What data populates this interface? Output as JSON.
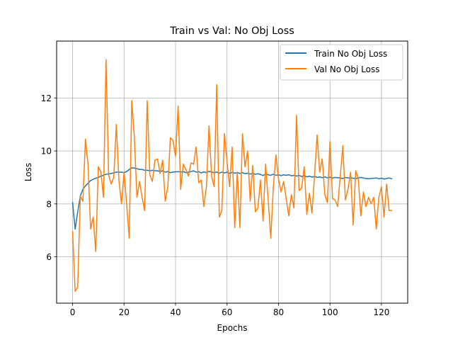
{
  "chart_data": {
    "type": "line",
    "title": "Train vs Val: No Obj Loss",
    "xlabel": "Epochs",
    "ylabel": "Loss",
    "xlim": [
      -6.2,
      130.2
    ],
    "ylim": [
      4.25,
      14.15
    ],
    "xticks": [
      0,
      20,
      40,
      60,
      80,
      100,
      120
    ],
    "yticks": [
      6,
      8,
      10,
      12
    ],
    "grid": true,
    "legend_position": "upper right",
    "series": [
      {
        "name": "Train No Obj Loss",
        "color": "#1f77b4",
        "x": [
          0,
          1,
          2,
          3,
          4,
          5,
          6,
          7,
          8,
          9,
          10,
          11,
          12,
          13,
          14,
          15,
          16,
          17,
          18,
          19,
          20,
          21,
          22,
          23,
          24,
          25,
          26,
          27,
          28,
          29,
          30,
          31,
          32,
          33,
          34,
          35,
          36,
          37,
          38,
          39,
          40,
          41,
          42,
          43,
          44,
          45,
          46,
          47,
          48,
          49,
          50,
          51,
          52,
          53,
          54,
          55,
          56,
          57,
          58,
          59,
          60,
          61,
          62,
          63,
          64,
          65,
          66,
          67,
          68,
          69,
          70,
          71,
          72,
          73,
          74,
          75,
          76,
          77,
          78,
          79,
          80,
          81,
          82,
          83,
          84,
          85,
          86,
          87,
          88,
          89,
          90,
          91,
          92,
          93,
          94,
          95,
          96,
          97,
          98,
          99,
          100,
          101,
          102,
          103,
          104,
          105,
          106,
          107,
          108,
          109,
          110,
          111,
          112,
          113,
          114,
          115,
          116,
          117,
          118,
          119,
          120,
          121,
          122,
          123,
          124
        ],
        "y": [
          8.05,
          7.05,
          7.7,
          8.3,
          8.55,
          8.68,
          8.78,
          8.88,
          8.93,
          8.97,
          9.0,
          9.05,
          9.08,
          9.12,
          9.13,
          9.15,
          9.17,
          9.2,
          9.2,
          9.2,
          9.18,
          9.22,
          9.3,
          9.36,
          9.35,
          9.33,
          9.3,
          9.3,
          9.27,
          9.27,
          9.25,
          9.27,
          9.25,
          9.25,
          9.22,
          9.25,
          9.2,
          9.22,
          9.18,
          9.2,
          9.21,
          9.22,
          9.2,
          9.22,
          9.18,
          9.2,
          9.22,
          9.25,
          9.2,
          9.22,
          9.17,
          9.21,
          9.18,
          9.23,
          9.2,
          9.18,
          9.2,
          9.16,
          9.2,
          9.17,
          9.2,
          9.15,
          9.19,
          9.16,
          9.18,
          9.15,
          9.18,
          9.14,
          9.16,
          9.13,
          9.15,
          9.12,
          9.14,
          9.11,
          9.07,
          9.13,
          9.1,
          9.08,
          9.12,
          9.08,
          9.1,
          9.07,
          9.1,
          9.08,
          9.1,
          9.06,
          9.08,
          9.05,
          9.08,
          9.03,
          9.07,
          9.02,
          9.05,
          9.01,
          9.04,
          9.0,
          9.02,
          8.99,
          9.02,
          8.98,
          9.01,
          8.97,
          9.0,
          8.99,
          8.98,
          8.96,
          9.0,
          8.98,
          8.99,
          8.97,
          8.96,
          8.98,
          9.0,
          8.98,
          8.96,
          8.95,
          8.96,
          8.97,
          8.98,
          8.95,
          8.97,
          8.94,
          8.96,
          8.98,
          8.95
        ]
      },
      {
        "name": "Val No Obj Loss",
        "color": "#ff7f0e",
        "x": [
          0,
          1,
          2,
          3,
          4,
          5,
          6,
          7,
          8,
          9,
          10,
          11,
          12,
          13,
          14,
          15,
          16,
          17,
          18,
          19,
          20,
          21,
          22,
          23,
          24,
          25,
          26,
          27,
          28,
          29,
          30,
          31,
          32,
          33,
          34,
          35,
          36,
          37,
          38,
          39,
          40,
          41,
          42,
          43,
          44,
          45,
          46,
          47,
          48,
          49,
          50,
          51,
          52,
          53,
          54,
          55,
          56,
          57,
          58,
          59,
          60,
          61,
          62,
          63,
          64,
          65,
          66,
          67,
          68,
          69,
          70,
          71,
          72,
          73,
          74,
          75,
          76,
          77,
          78,
          79,
          80,
          81,
          82,
          83,
          84,
          85,
          86,
          87,
          88,
          89,
          90,
          91,
          92,
          93,
          94,
          95,
          96,
          97,
          98,
          99,
          100,
          101,
          102,
          103,
          104,
          105,
          106,
          107,
          108,
          109,
          110,
          111,
          112,
          113,
          114,
          115,
          116,
          117,
          118,
          119,
          120,
          121,
          122,
          123,
          124
        ],
        "y": [
          6.95,
          4.7,
          4.85,
          8.3,
          8.1,
          10.45,
          9.5,
          7.05,
          7.5,
          6.2,
          9.4,
          9.2,
          8.25,
          13.45,
          9.1,
          8.75,
          9.0,
          11.0,
          8.9,
          8.0,
          9.2,
          8.0,
          6.7,
          11.9,
          10.5,
          8.25,
          8.85,
          8.25,
          7.75,
          11.9,
          9.1,
          8.85,
          9.65,
          9.7,
          9.15,
          9.65,
          8.1,
          8.65,
          10.5,
          10.4,
          9.8,
          11.7,
          8.55,
          9.5,
          9.3,
          9.05,
          9.55,
          9.5,
          10.15,
          8.8,
          8.9,
          7.9,
          8.65,
          10.95,
          9.05,
          8.65,
          12.5,
          7.5,
          7.75,
          10.65,
          9.6,
          8.65,
          10.15,
          7.1,
          9.2,
          7.1,
          10.65,
          9.4,
          10.0,
          8.1,
          9.45,
          7.7,
          7.85,
          8.9,
          7.35,
          9.5,
          8.15,
          6.7,
          8.65,
          9.85,
          8.95,
          8.45,
          8.85,
          8.2,
          7.55,
          8.35,
          7.85,
          11.35,
          8.5,
          8.6,
          9.4,
          7.6,
          8.4,
          7.65,
          9.05,
          10.6,
          9.2,
          9.7,
          8.35,
          8.05,
          10.35,
          8.2,
          8.15,
          7.9,
          9.05,
          10.2,
          8.15,
          8.55,
          9.2,
          7.2,
          9.25,
          8.95,
          7.55,
          8.45,
          7.9,
          8.25,
          8.0,
          8.25,
          7.05,
          8.25,
          8.65,
          7.5,
          8.75,
          7.75,
          7.75
        ]
      }
    ]
  }
}
